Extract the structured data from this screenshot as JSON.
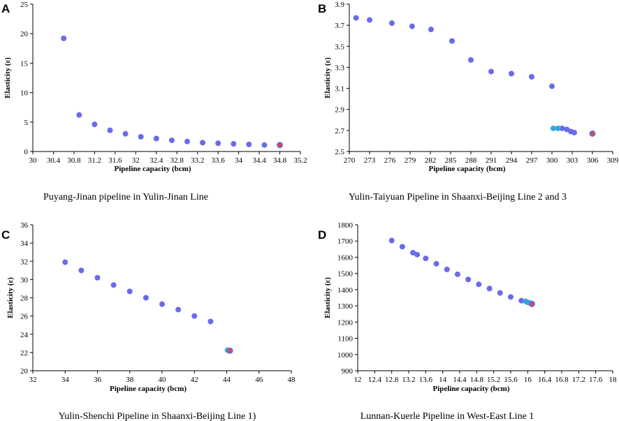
{
  "colors": {
    "point": "#6a6aea",
    "end_point": "#d14c4c",
    "highlight_point": "#35a7d8"
  },
  "chart_data": [
    {
      "panel": "A",
      "type": "scatter",
      "caption": "Puyang-Jinan pipeline in Yulin-Jinan Line",
      "xlabel": "Pipeline capacity (bcm)",
      "ylabel": "Elasticity (ε)",
      "xlim": [
        30,
        35.2
      ],
      "ylim": [
        0,
        25
      ],
      "xticks": [
        "30",
        "30.4",
        "30.8",
        "31.2",
        "31.6",
        "32",
        "32.4",
        "32.8",
        "33.2",
        "33.6",
        "34",
        "34.4",
        "34.8",
        "35.2"
      ],
      "yticks": [
        "0",
        "5",
        "10",
        "15",
        "20",
        "25"
      ],
      "points": [
        [
          30.6,
          19.2
        ],
        [
          30.9,
          6.2
        ],
        [
          31.2,
          4.6
        ],
        [
          31.5,
          3.6
        ],
        [
          31.8,
          3.0
        ],
        [
          32.1,
          2.5
        ],
        [
          32.4,
          2.2
        ],
        [
          32.7,
          1.9
        ],
        [
          33.0,
          1.7
        ],
        [
          33.3,
          1.5
        ],
        [
          33.6,
          1.4
        ],
        [
          33.9,
          1.3
        ],
        [
          34.2,
          1.2
        ],
        [
          34.5,
          1.1
        ]
      ],
      "end_points": [
        [
          34.8,
          1.1
        ]
      ],
      "highlight_points": []
    },
    {
      "panel": "B",
      "type": "scatter",
      "caption": "Yulin-Taiyuan Pipeline in    Shaanxi-Beijing Line 2 and 3",
      "xlabel": "Pipeline capacity (bcm)",
      "ylabel": "Elasticity (ε)",
      "xlim": [
        270,
        309
      ],
      "ylim": [
        2.5,
        3.9
      ],
      "xticks": [
        "270",
        "273",
        "276",
        "279",
        "282",
        "285",
        "288",
        "291",
        "294",
        "297",
        "300",
        "303",
        "306",
        "309"
      ],
      "yticks": [
        "2.5",
        "2.7",
        "2.9",
        "3.1",
        "3.3",
        "3.5",
        "3.7",
        "3.9"
      ],
      "points": [
        [
          271,
          3.77
        ],
        [
          273,
          3.75
        ],
        [
          276.3,
          3.72
        ],
        [
          279.3,
          3.69
        ],
        [
          282.1,
          3.66
        ],
        [
          285.2,
          3.55
        ],
        [
          288,
          3.37
        ],
        [
          291,
          3.26
        ],
        [
          294,
          3.24
        ],
        [
          297,
          3.21
        ],
        [
          300,
          3.12
        ],
        [
          301.5,
          2.72
        ],
        [
          302.2,
          2.71
        ],
        [
          302.8,
          2.69
        ],
        [
          303.3,
          2.68
        ]
      ],
      "end_points": [
        [
          306,
          2.67
        ]
      ],
      "highlight_points": [
        [
          300.2,
          2.72
        ],
        [
          300.9,
          2.72
        ]
      ]
    },
    {
      "panel": "C",
      "type": "scatter",
      "caption": "Yulin-Shenchi Pipeline in Shaanxi-Beijing Line 1)",
      "xlabel": "Pipeline capacity (bcm)",
      "ylabel": "Elasticity (ε)",
      "xlim": [
        32,
        48
      ],
      "ylim": [
        20,
        36
      ],
      "xticks": [
        "32",
        "34",
        "36",
        "38",
        "40",
        "42",
        "44",
        "46",
        "48"
      ],
      "yticks": [
        "20",
        "22",
        "24",
        "26",
        "28",
        "30",
        "32",
        "34",
        "36"
      ],
      "points": [
        [
          34,
          31.9
        ],
        [
          35,
          31.0
        ],
        [
          36,
          30.2
        ],
        [
          37,
          29.4
        ],
        [
          38,
          28.7
        ],
        [
          39,
          28.0
        ],
        [
          40,
          27.3
        ],
        [
          41,
          26.7
        ],
        [
          42,
          26.0
        ],
        [
          43,
          25.4
        ]
      ],
      "end_points": [
        [
          44.2,
          22.2
        ]
      ],
      "highlight_points": [
        [
          44.05,
          22.25
        ]
      ]
    },
    {
      "panel": "D",
      "type": "scatter",
      "caption": "Lunnan-Kuerle Pipeline in West-East Line 1",
      "xlabel": "Pipeline capacity (bcm)",
      "ylabel": "Elasticity (ε)",
      "xlim": [
        12,
        18
      ],
      "ylim": [
        900,
        1800
      ],
      "xticks": [
        "12",
        "12.4",
        "12.8",
        "13.2",
        "13.6",
        "14",
        "14.4",
        "14.8",
        "15.2",
        "15.6",
        "16",
        "16.4",
        "16.8",
        "17.2",
        "17.6",
        "18"
      ],
      "yticks": [
        "900",
        "1000",
        "1100",
        "1200",
        "1300",
        "1400",
        "1500",
        "1600",
        "1700",
        "1800"
      ],
      "points": [
        [
          12.8,
          1703
        ],
        [
          13.05,
          1665
        ],
        [
          13.3,
          1628
        ],
        [
          13.4,
          1616
        ],
        [
          13.6,
          1593
        ],
        [
          13.85,
          1560
        ],
        [
          14.1,
          1525
        ],
        [
          14.35,
          1495
        ],
        [
          14.6,
          1463
        ],
        [
          14.85,
          1433
        ],
        [
          15.1,
          1407
        ],
        [
          15.35,
          1380
        ],
        [
          15.6,
          1355
        ],
        [
          15.85,
          1332
        ]
      ],
      "end_points": [
        [
          16.1,
          1312
        ]
      ],
      "highlight_points": [
        [
          15.95,
          1328
        ],
        [
          16.0,
          1322
        ],
        [
          16.05,
          1318
        ]
      ]
    }
  ]
}
